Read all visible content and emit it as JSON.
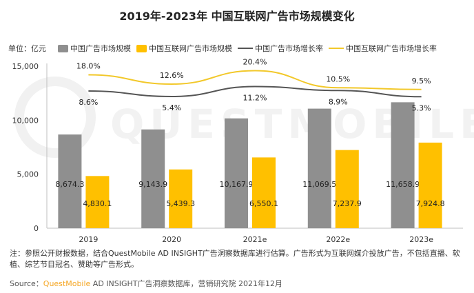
{
  "header": {
    "title": "2019年-2023年 中国互联网广告市场规模变化",
    "unit": "单位：亿元"
  },
  "watermark": "QUESTMOBILE",
  "colors": {
    "bar_gray": "#8f8f8f",
    "bar_yellow": "#ffc000",
    "line_gray": "#555555",
    "line_yellow": "#f2c82a"
  },
  "legend": [
    {
      "label": "中国广告市场规模",
      "type": "box",
      "color": "#8f8f8f"
    },
    {
      "label": "中国互联网广告市场规模",
      "type": "box",
      "color": "#ffc000"
    },
    {
      "label": "中国广告市场增长率",
      "type": "line",
      "color": "#555555"
    },
    {
      "label": "中国互联网广告市场增长率",
      "type": "line",
      "color": "#f2c82a"
    }
  ],
  "chart_data": {
    "type": "bar",
    "title": "2019年-2023年 中国互联网广告市场规模变化",
    "categories": [
      "2019",
      "2020",
      "2021e",
      "2022e",
      "2023e"
    ],
    "ylim": [
      0,
      15000
    ],
    "yticks": [
      "15,000",
      "10,000",
      "5,000",
      "0"
    ],
    "ytick_values": [
      15000,
      10000,
      5000,
      0
    ],
    "legend_position": "top",
    "series": [
      {
        "name": "中国广告市场规模",
        "type": "bar",
        "values": [
          8674.3,
          9143.9,
          10167.9,
          11069.5,
          11658.9
        ],
        "labels": [
          "8,674.3",
          "9,143.9",
          "10,167.9",
          "11,069.5",
          "11,658.9"
        ]
      },
      {
        "name": "中国互联网广告市场规模",
        "type": "bar",
        "values": [
          4830.1,
          5439.3,
          6550.1,
          7237.9,
          7924.8
        ],
        "labels": [
          "4,830.1",
          "5,439.3",
          "6,550.1",
          "7,237.9",
          "7,924.8"
        ]
      },
      {
        "name": "中国广告市场增长率",
        "type": "line",
        "values": [
          8.6,
          5.4,
          11.2,
          8.9,
          5.3
        ],
        "labels": [
          "8.6%",
          "5.4%",
          "11.2%",
          "8.9%",
          "5.3%"
        ]
      },
      {
        "name": "中国互联网广告市场增长率",
        "type": "line",
        "values": [
          18.0,
          12.6,
          20.4,
          10.5,
          9.5
        ],
        "labels": [
          "18.0%",
          "12.6%",
          "20.4%",
          "10.5%",
          "9.5%"
        ]
      }
    ]
  },
  "footer": {
    "note": "注：参照公开财报数据，结合QuestMobile AD INSIGHT广告洞察数据库进行估算。广告形式为互联网媒介投放广告，不包括直播、软植、综艺节目冠名、赞助等广告形式。",
    "source_prefix": "Source：",
    "source_brand": "QuestMobile",
    "source_rest": " AD INSIGHT广告洞察数据库，营销研究院 2021年12月"
  }
}
